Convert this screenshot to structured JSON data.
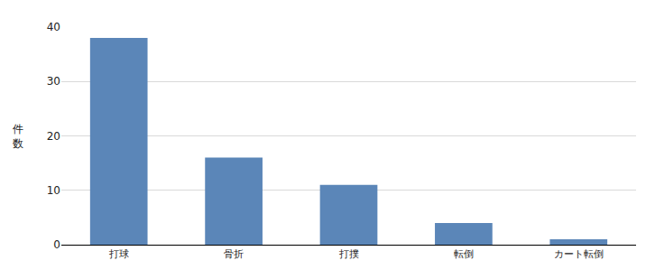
{
  "chart_data": {
    "type": "bar",
    "y_label": "件数",
    "categories": [
      "打球",
      "骨折",
      "打撲",
      "転倒",
      "カート転倒"
    ],
    "values": [
      38,
      16,
      11,
      4,
      1
    ],
    "color": "#5b86b8",
    "ylim": [
      0,
      40
    ],
    "yticks": [
      0,
      10,
      20,
      30,
      40
    ],
    "grid": true
  }
}
